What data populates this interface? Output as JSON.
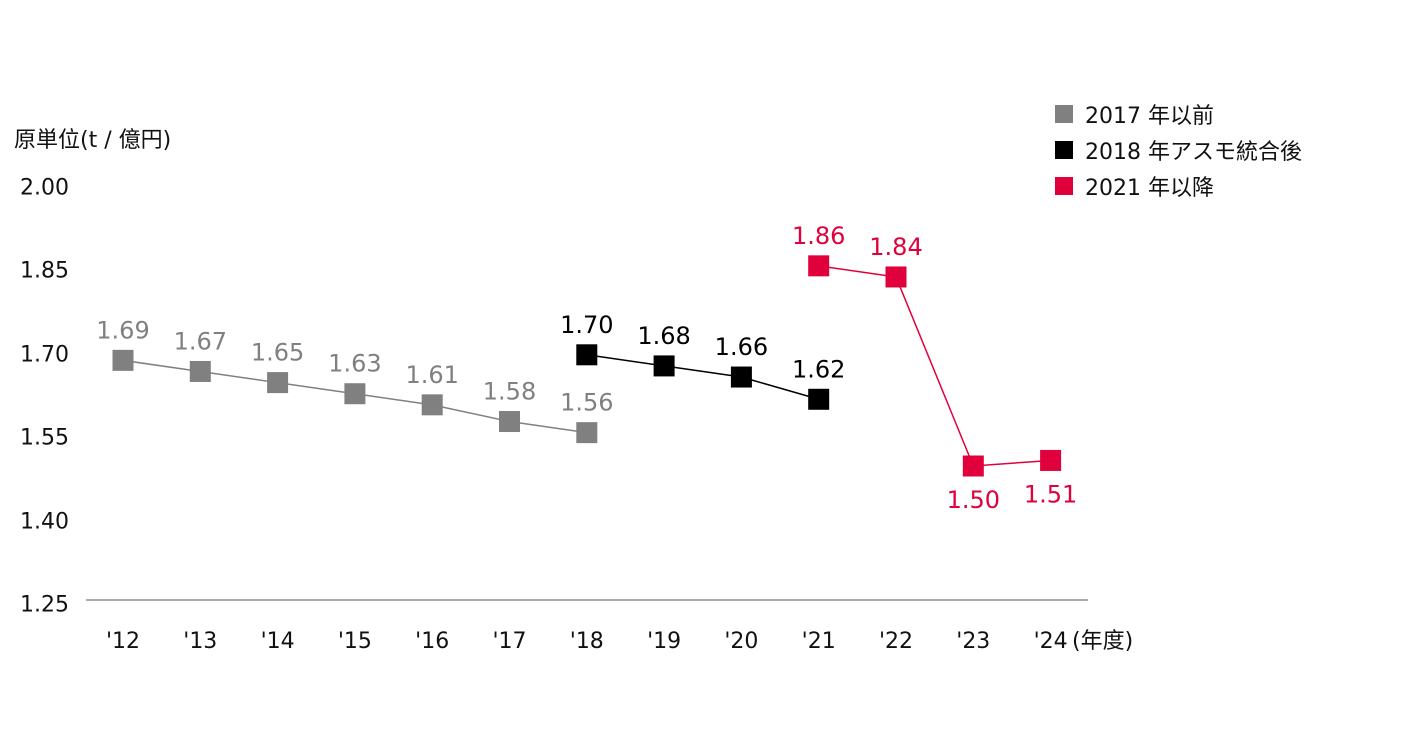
{
  "chart_data": {
    "type": "line",
    "ylabel": "原単位(t / 億円)",
    "xlabel": "(年度)",
    "ylim": [
      1.25,
      2.0
    ],
    "yticks": [
      "2.00",
      "1.85",
      "1.70",
      "1.55",
      "1.40",
      "1.25"
    ],
    "categories": [
      "'12",
      "'13",
      "'14",
      "'15",
      "'16",
      "'17",
      "'18",
      "'19",
      "'20",
      "'21",
      "'22",
      "'23",
      "'24"
    ],
    "series": [
      {
        "name": "2017 年以前",
        "color": "#808080",
        "x": [
          "'12",
          "'13",
          "'14",
          "'15",
          "'16",
          "'17",
          "'18"
        ],
        "values": [
          1.69,
          1.67,
          1.65,
          1.63,
          1.61,
          1.58,
          1.56
        ],
        "labels": [
          "1.69",
          "1.67",
          "1.65",
          "1.63",
          "1.61",
          "1.58",
          "1.56"
        ],
        "label_position": "above"
      },
      {
        "name": "2018 年アスモ統合後",
        "color": "#000000",
        "x": [
          "'18",
          "'19",
          "'20",
          "'21"
        ],
        "values": [
          1.7,
          1.68,
          1.66,
          1.62
        ],
        "labels": [
          "1.70",
          "1.68",
          "1.66",
          "1.62"
        ],
        "label_position": "above"
      },
      {
        "name": "2021 年以降",
        "color": "#e0003c",
        "x": [
          "'21",
          "'22",
          "'23",
          "'24"
        ],
        "values": [
          1.86,
          1.84,
          1.5,
          1.51
        ],
        "labels": [
          "1.86",
          "1.84",
          "1.50",
          "1.51"
        ],
        "label_position": [
          "above",
          "above",
          "below",
          "below"
        ]
      }
    ],
    "legend_position": "top-right",
    "grid": false
  }
}
